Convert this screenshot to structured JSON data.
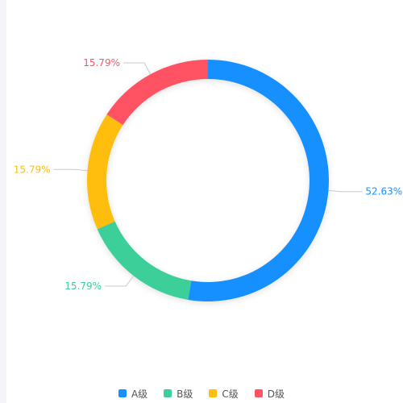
{
  "chart_data": {
    "type": "pie",
    "donut": true,
    "legend_position": "bottom",
    "series": [
      {
        "name": "A级",
        "value": 52.63,
        "label": "52.63%",
        "color": "#1890ff"
      },
      {
        "name": "B级",
        "value": 15.79,
        "label": "15.79%",
        "color": "#3ccf9a"
      },
      {
        "name": "C级",
        "value": 15.79,
        "label": "15.79%",
        "color": "#ffbe0b"
      },
      {
        "name": "D级",
        "value": 15.79,
        "label": "15.79%",
        "color": "#ff5364"
      }
    ]
  }
}
